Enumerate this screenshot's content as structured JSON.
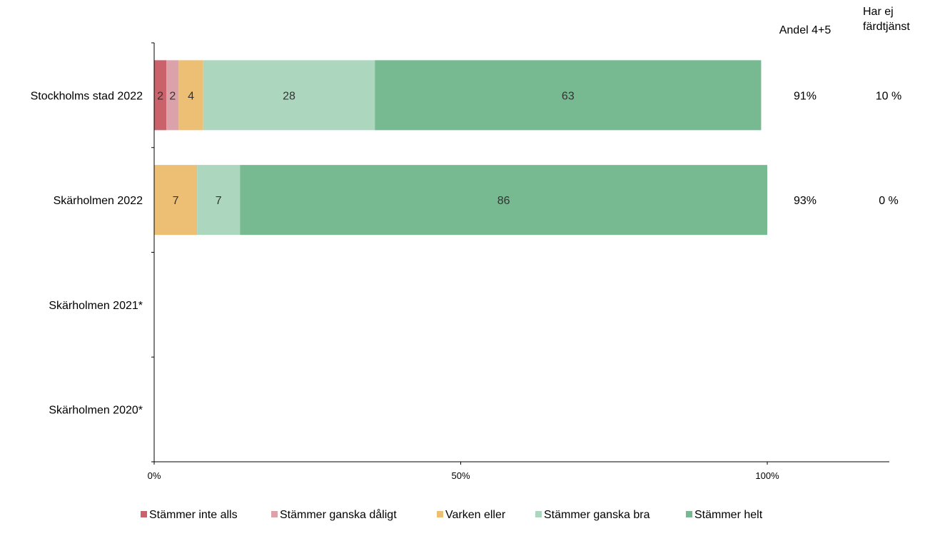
{
  "chart_data": {
    "type": "bar",
    "orientation": "horizontal",
    "stacked": true,
    "categories": [
      "Stockholms stad 2022",
      "Skärholmen 2022",
      "Skärholmen 2021*",
      "Skärholmen 2020*"
    ],
    "series": [
      {
        "name": "Stämmer inte alls",
        "color": "#c9626a",
        "values": [
          2,
          0,
          null,
          null
        ]
      },
      {
        "name": "Stämmer ganska dåligt",
        "color": "#dba3a9",
        "values": [
          2,
          0,
          null,
          null
        ]
      },
      {
        "name": "Varken eller",
        "color": "#edbf75",
        "values": [
          4,
          7,
          null,
          null
        ]
      },
      {
        "name": "Stämmer ganska bra",
        "color": "#acd6bd",
        "values": [
          28,
          7,
          null,
          null
        ]
      },
      {
        "name": "Stämmer helt",
        "color": "#77b990",
        "values": [
          63,
          86,
          null,
          null
        ]
      }
    ],
    "x_ticks": [
      "0%",
      "50%",
      "100%"
    ],
    "xlim": [
      0,
      100
    ],
    "grid": false,
    "legend_position": "bottom",
    "side_columns": [
      {
        "header": "Andel 4+5",
        "values": [
          "91%",
          "93%",
          "",
          ""
        ]
      },
      {
        "header_lines": [
          "Har ej",
          "färdtjänst"
        ],
        "values": [
          "10 %",
          "0 %",
          "",
          ""
        ]
      }
    ]
  }
}
